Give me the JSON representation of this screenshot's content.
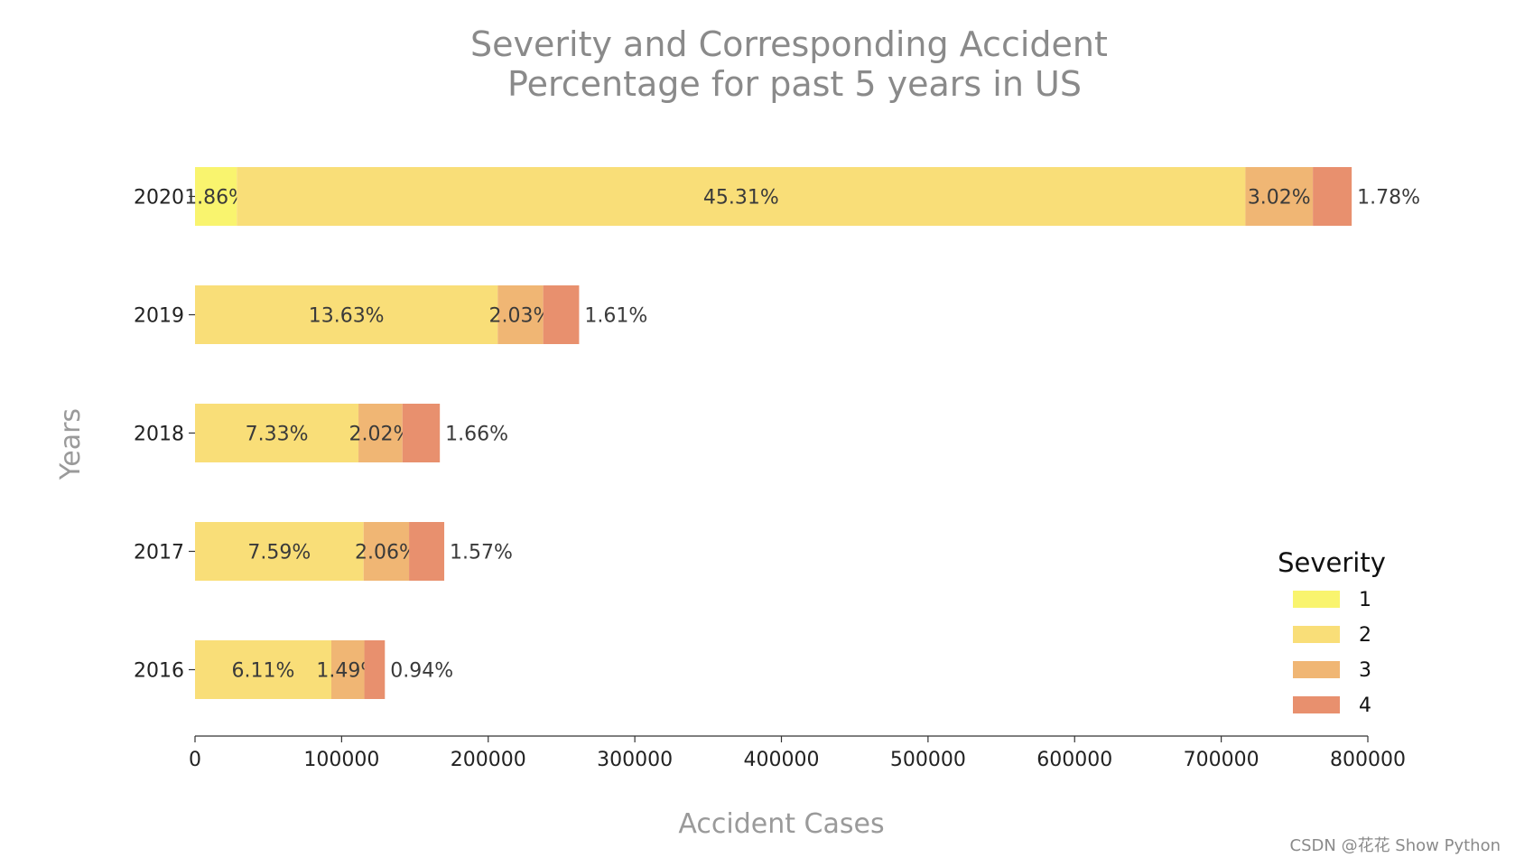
{
  "chart_data": {
    "type": "bar",
    "orientation": "horizontal",
    "stacked": true,
    "title": "Severity and Corresponding Accident\nPercentage for past 5 years in US",
    "xlabel": "Accident Cases",
    "ylabel": "Years",
    "xlim": [
      0,
      800000
    ],
    "xticks": [
      "0",
      "100000",
      "200000",
      "300000",
      "400000",
      "500000",
      "600000",
      "700000",
      "800000"
    ],
    "categories": [
      "2016",
      "2017",
      "2018",
      "2019",
      "2020"
    ],
    "series": [
      {
        "name": "1",
        "color": "#f9f46e",
        "values": [
          0,
          0,
          0,
          0,
          28500
        ],
        "labels": [
          "",
          "",
          "",
          "",
          "1.86%"
        ]
      },
      {
        "name": "2",
        "color": "#f9de78",
        "values": [
          93000,
          115000,
          111500,
          206500,
          688000
        ],
        "labels": [
          "6.11%",
          "7.59%",
          "7.33%",
          "13.63%",
          "45.31%"
        ]
      },
      {
        "name": "3",
        "color": "#f0b674",
        "values": [
          22500,
          31000,
          30000,
          31000,
          46000
        ],
        "labels": [
          "1.49%",
          "2.06%",
          "2.02%",
          "2.03%",
          "3.02%"
        ]
      },
      {
        "name": "4",
        "color": "#e8906e",
        "values": [
          14000,
          24000,
          25500,
          24500,
          26500
        ],
        "labels": [
          "0.94%",
          "1.57%",
          "1.66%",
          "1.61%",
          "1.78%"
        ]
      }
    ],
    "legend": {
      "title": "Severity",
      "position": "lower-right"
    },
    "grid": false
  },
  "watermark": "CSDN @花花 Show Python"
}
